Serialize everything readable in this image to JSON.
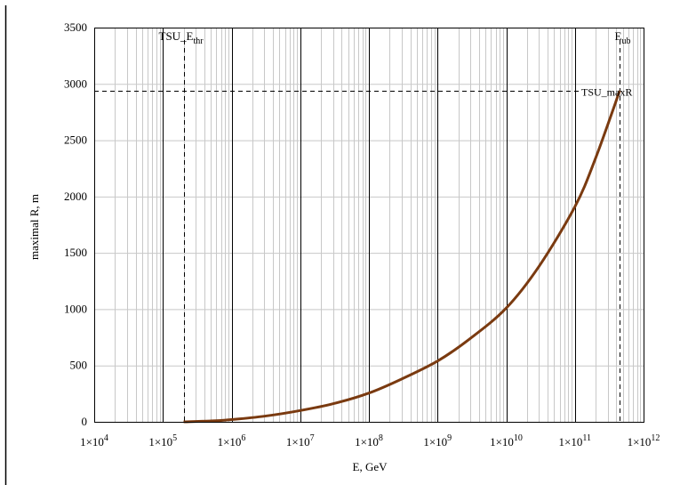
{
  "chart_data": {
    "type": "line",
    "xscale": "log",
    "xlim": [
      10000.0,
      1000000000000.0
    ],
    "ylim": [
      0,
      3500
    ],
    "xlabel": "E,  GeV",
    "ylabel": "maximal R,  m",
    "yticks": [
      "0",
      "500",
      "1000",
      "1500",
      "2000",
      "2500",
      "3000",
      "3500"
    ],
    "xticks": [
      {
        "base": "1×10",
        "exp": "4"
      },
      {
        "base": "1×10",
        "exp": "5"
      },
      {
        "base": "1×10",
        "exp": "6"
      },
      {
        "base": "1×10",
        "exp": "7"
      },
      {
        "base": "1×10",
        "exp": "8"
      },
      {
        "base": "1×10",
        "exp": "9"
      },
      {
        "base": "1×10",
        "exp": "10"
      },
      {
        "base": "1×10",
        "exp": "11"
      },
      {
        "base": "1×10",
        "exp": "12"
      }
    ],
    "grid": true,
    "series": [
      {
        "color": "#7a3a10",
        "x": [
          200000.0,
          500000.0,
          1000000.0,
          3000000.0,
          10000000.0,
          30000000.0,
          100000000.0,
          300000000.0,
          1000000000.0,
          3000000000.0,
          10000000000.0,
          30000000000.0,
          100000000000.0,
          200000000000.0,
          450000000000.0
        ],
        "y": [
          0,
          8,
          20,
          50,
          100,
          160,
          255,
          380,
          540,
          740,
          1010,
          1380,
          1910,
          2340,
          2940
        ]
      }
    ],
    "markers": {
      "E_thr": {
        "x": 200000.0,
        "label_main": "TSU_E",
        "label_sub": "thr"
      },
      "E_ub": {
        "x": 450000000000.0,
        "label_main": "E",
        "label_sub": "ub"
      },
      "maxR": {
        "y": 2940,
        "label": "TSU_maxR"
      }
    }
  }
}
